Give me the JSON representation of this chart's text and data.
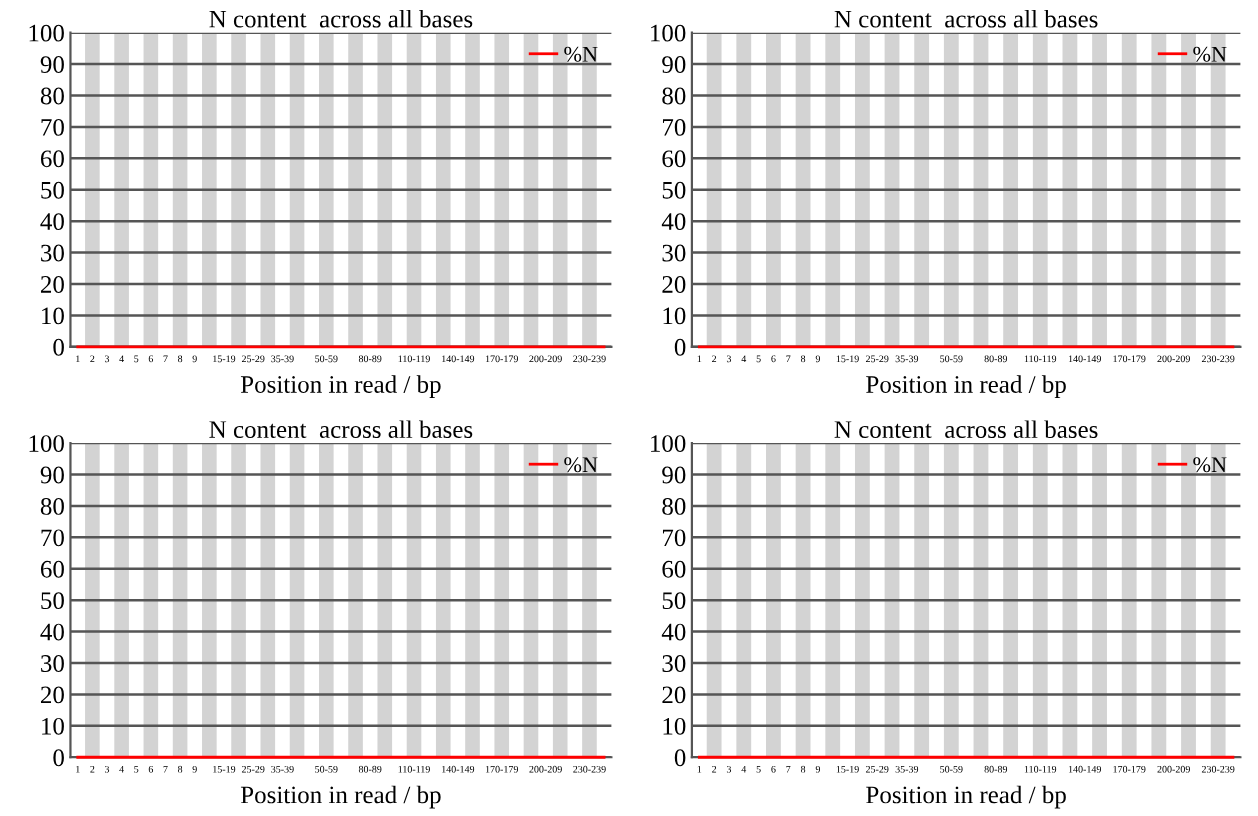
{
  "chart_data": [
    {
      "type": "line",
      "title": "N content  across all bases",
      "xlabel": "Position in read / bp",
      "categories": [
        "1",
        "2",
        "3",
        "4",
        "5",
        "6",
        "7",
        "8",
        "9",
        null,
        "15-19",
        null,
        "25-29",
        null,
        "35-39",
        null,
        null,
        "50-59",
        null,
        null,
        "80-89",
        null,
        null,
        "110-119",
        null,
        null,
        "140-149",
        null,
        null,
        "170-179",
        null,
        null,
        "200-209",
        null,
        null,
        "230-239",
        null
      ],
      "series": [
        {
          "name": "%N",
          "color": "#ff0000",
          "values": [
            0,
            0,
            0,
            0,
            0,
            0,
            0,
            0,
            0,
            0,
            0,
            0,
            0,
            0,
            0,
            0,
            0,
            0,
            0,
            0,
            0,
            0,
            0,
            0,
            0,
            0,
            0,
            0,
            0,
            0,
            0,
            0,
            0,
            0,
            0,
            0,
            0
          ]
        }
      ],
      "ylim": [
        0,
        100
      ],
      "yticks": [
        0,
        10,
        20,
        30,
        40,
        50,
        60,
        70,
        80,
        90,
        100
      ],
      "grid": "y",
      "legend": "top right",
      "marker": "none",
      "line_style": "solid"
    },
    {
      "type": "line",
      "title": "N content  across all bases",
      "xlabel": "Position in read / bp",
      "categories": [
        "1",
        "2",
        "3",
        "4",
        "5",
        "6",
        "7",
        "8",
        "9",
        null,
        "15-19",
        null,
        "25-29",
        null,
        "35-39",
        null,
        null,
        "50-59",
        null,
        null,
        "80-89",
        null,
        null,
        "110-119",
        null,
        null,
        "140-149",
        null,
        null,
        "170-179",
        null,
        null,
        "200-209",
        null,
        null,
        "230-239",
        null
      ],
      "series": [
        {
          "name": "%N",
          "color": "#ff0000",
          "values": [
            0,
            0,
            0,
            0,
            0,
            0,
            0,
            0,
            0,
            0,
            0,
            0,
            0,
            0,
            0,
            0,
            0,
            0,
            0,
            0,
            0,
            0,
            0,
            0,
            0,
            0,
            0,
            0,
            0,
            0,
            0,
            0,
            0,
            0,
            0,
            0,
            0
          ]
        }
      ],
      "ylim": [
        0,
        100
      ],
      "yticks": [
        0,
        10,
        20,
        30,
        40,
        50,
        60,
        70,
        80,
        90,
        100
      ],
      "grid": "y",
      "legend": "top right",
      "marker": "none",
      "line_style": "solid"
    },
    {
      "type": "line",
      "title": "N content  across all bases",
      "xlabel": "Position in read / bp",
      "categories": [
        "1",
        "2",
        "3",
        "4",
        "5",
        "6",
        "7",
        "8",
        "9",
        null,
        "15-19",
        null,
        "25-29",
        null,
        "35-39",
        null,
        null,
        "50-59",
        null,
        null,
        "80-89",
        null,
        null,
        "110-119",
        null,
        null,
        "140-149",
        null,
        null,
        "170-179",
        null,
        null,
        "200-209",
        null,
        null,
        "230-239",
        null
      ],
      "series": [
        {
          "name": "%N",
          "color": "#ff0000",
          "values": [
            0,
            0,
            0,
            0,
            0,
            0,
            0,
            0,
            0,
            0,
            0,
            0,
            0,
            0,
            0,
            0,
            0,
            0,
            0,
            0,
            0,
            0,
            0,
            0,
            0,
            0,
            0,
            0,
            0,
            0,
            0,
            0,
            0,
            0,
            0,
            0,
            0
          ]
        }
      ],
      "ylim": [
        0,
        100
      ],
      "yticks": [
        0,
        10,
        20,
        30,
        40,
        50,
        60,
        70,
        80,
        90,
        100
      ],
      "grid": "y",
      "legend": "top right",
      "marker": "none",
      "line_style": "solid"
    },
    {
      "type": "line",
      "title": "N content  across all bases",
      "xlabel": "Position in read / bp",
      "categories": [
        "1",
        "2",
        "3",
        "4",
        "5",
        "6",
        "7",
        "8",
        "9",
        null,
        "15-19",
        null,
        "25-29",
        null,
        "35-39",
        null,
        null,
        "50-59",
        null,
        null,
        "80-89",
        null,
        null,
        "110-119",
        null,
        null,
        "140-149",
        null,
        null,
        "170-179",
        null,
        null,
        "200-209",
        null,
        null,
        "230-239",
        null
      ],
      "series": [
        {
          "name": "%N",
          "color": "#ff0000",
          "values": [
            0,
            0,
            0,
            0,
            0,
            0,
            0,
            0,
            0,
            0,
            0,
            0,
            0,
            0,
            0,
            0,
            0,
            0,
            0,
            0,
            0,
            0,
            0,
            0,
            0,
            0,
            0,
            0,
            0,
            0,
            0,
            0,
            0,
            0,
            0,
            0,
            0
          ]
        }
      ],
      "ylim": [
        0,
        100
      ],
      "yticks": [
        0,
        10,
        20,
        30,
        40,
        50,
        60,
        70,
        80,
        90,
        100
      ],
      "grid": "y",
      "legend": "top right",
      "marker": "none",
      "line_style": "solid"
    }
  ]
}
